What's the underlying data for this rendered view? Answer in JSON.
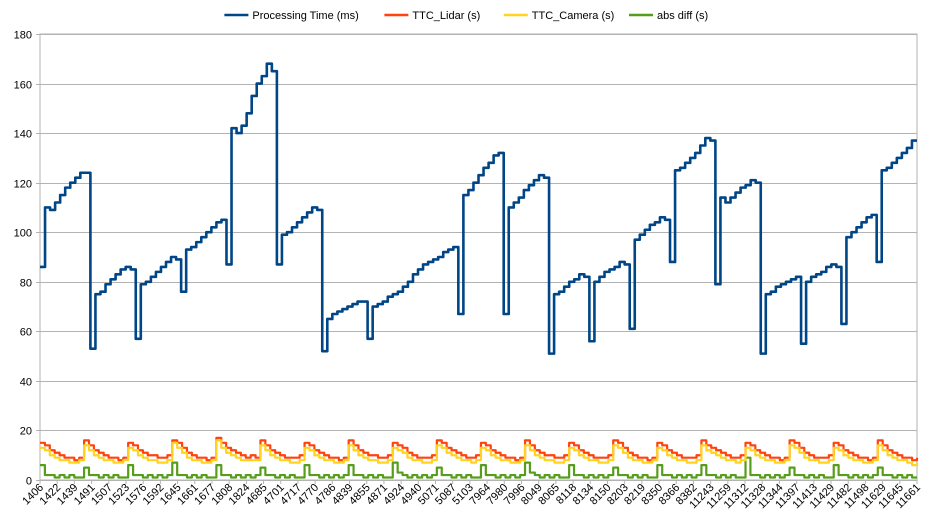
{
  "chart_data": {
    "type": "line",
    "title": "",
    "xlabel": "",
    "ylabel": "",
    "ylim": [
      0,
      180
    ],
    "yticks": [
      0,
      20,
      40,
      60,
      80,
      100,
      120,
      140,
      160,
      180
    ],
    "grid": true,
    "legend_position": "top-center",
    "x_tick_labels": [
      "1406",
      "1422",
      "1439",
      "1491",
      "1507",
      "1523",
      "1576",
      "1592",
      "1645",
      "1661",
      "1677",
      "1808",
      "1824",
      "4685",
      "4701",
      "4717",
      "4770",
      "4786",
      "4839",
      "4855",
      "4871",
      "4924",
      "4940",
      "5071",
      "5087",
      "5103",
      "7964",
      "7980",
      "7996",
      "8049",
      "8065",
      "8118",
      "8134",
      "8150",
      "8203",
      "8219",
      "8350",
      "8366",
      "8382",
      "11243",
      "11259",
      "11312",
      "11328",
      "11344",
      "11397",
      "11413",
      "11429",
      "11482",
      "11498",
      "11629",
      "11645",
      "11661"
    ],
    "series": [
      {
        "name": "Processing Time (ms)",
        "color": "#004586",
        "values": [
          86,
          110,
          109,
          112,
          115,
          118,
          120,
          122,
          124,
          124,
          53,
          75,
          76,
          79,
          81,
          83,
          85,
          86,
          85,
          57,
          79,
          80,
          82,
          84,
          86,
          88,
          90,
          89,
          76,
          93,
          94,
          96,
          98,
          100,
          102,
          104,
          105,
          87,
          142,
          140,
          143,
          148,
          155,
          160,
          163,
          168,
          165,
          87,
          99,
          100,
          102,
          104,
          106,
          108,
          110,
          109,
          52,
          65,
          67,
          68,
          69,
          70,
          71,
          72,
          72,
          57,
          70,
          71,
          72,
          74,
          75,
          76,
          78,
          80,
          83,
          85,
          87,
          88,
          89,
          90,
          92,
          93,
          94,
          67,
          115,
          117,
          120,
          123,
          126,
          128,
          131,
          132,
          67,
          110,
          112,
          114,
          117,
          119,
          121,
          123,
          122,
          51,
          75,
          76,
          78,
          80,
          81,
          83,
          82,
          56,
          80,
          82,
          84,
          85,
          86,
          88,
          87,
          61,
          97,
          99,
          101,
          103,
          104,
          106,
          105,
          88,
          125,
          126,
          128,
          130,
          132,
          135,
          138,
          137,
          79,
          114,
          112,
          114,
          116,
          118,
          119,
          121,
          120,
          51,
          75,
          76,
          78,
          79,
          80,
          81,
          82,
          55,
          80,
          82,
          83,
          84,
          86,
          87,
          86,
          63,
          98,
          100,
          102,
          104,
          106,
          107,
          88,
          125,
          126,
          128,
          130,
          132,
          134,
          137,
          137
        ]
      },
      {
        "name": "TTC_Lidar (s)",
        "color": "#ff420e",
        "values": [
          15,
          14,
          12,
          11,
          10,
          9,
          9,
          8,
          9,
          16,
          14,
          12,
          11,
          10,
          9,
          9,
          8,
          9,
          15,
          14,
          12,
          11,
          10,
          10,
          9,
          9,
          10,
          16,
          15,
          13,
          11,
          10,
          9,
          9,
          8,
          9,
          17,
          15,
          13,
          12,
          11,
          10,
          9,
          10,
          9,
          16,
          14,
          12,
          11,
          10,
          9,
          9,
          9,
          10,
          15,
          14,
          12,
          11,
          10,
          9,
          9,
          8,
          9,
          16,
          14,
          12,
          11,
          10,
          10,
          9,
          9,
          10,
          15,
          14,
          13,
          11,
          10,
          9,
          9,
          9,
          10,
          16,
          15,
          13,
          12,
          11,
          10,
          9,
          9,
          10,
          15,
          14,
          12,
          11,
          10,
          9,
          9,
          8,
          9,
          16,
          14,
          12,
          11,
          10,
          10,
          9,
          9,
          10,
          15,
          14,
          12,
          11,
          10,
          9,
          9,
          9,
          10,
          16,
          15,
          13,
          11,
          10,
          9,
          9,
          8,
          9,
          15,
          14,
          12,
          11,
          10,
          9,
          9,
          9,
          10,
          16,
          14,
          13,
          12,
          11,
          10,
          9,
          9,
          10,
          15,
          14,
          12,
          11,
          10,
          9,
          9,
          8,
          9,
          16,
          15,
          13,
          11,
          10,
          9,
          9,
          9,
          10,
          15,
          14,
          12,
          11,
          10,
          9,
          9,
          8,
          9,
          16,
          14,
          12,
          11,
          10,
          9,
          9,
          8,
          9
        ]
      },
      {
        "name": "TTC_Camera (s)",
        "color": "#ffd320",
        "values": [
          13,
          12,
          10,
          9,
          8,
          8,
          7,
          7,
          8,
          14,
          12,
          10,
          9,
          8,
          8,
          7,
          7,
          8,
          13,
          12,
          10,
          9,
          8,
          8,
          7,
          7,
          8,
          15,
          13,
          11,
          9,
          8,
          8,
          7,
          7,
          8,
          16,
          13,
          11,
          10,
          9,
          8,
          8,
          8,
          8,
          14,
          12,
          10,
          9,
          8,
          8,
          7,
          7,
          8,
          13,
          12,
          10,
          9,
          8,
          8,
          7,
          7,
          8,
          14,
          12,
          10,
          9,
          8,
          8,
          7,
          7,
          8,
          13,
          12,
          11,
          9,
          8,
          8,
          7,
          7,
          8,
          14,
          13,
          11,
          10,
          9,
          8,
          8,
          7,
          8,
          13,
          12,
          10,
          9,
          8,
          8,
          7,
          7,
          8,
          14,
          12,
          10,
          9,
          8,
          8,
          7,
          7,
          8,
          13,
          12,
          10,
          9,
          8,
          8,
          7,
          7,
          8,
          14,
          13,
          11,
          9,
          8,
          8,
          7,
          7,
          8,
          13,
          12,
          10,
          9,
          8,
          8,
          7,
          7,
          8,
          14,
          12,
          11,
          10,
          9,
          8,
          8,
          7,
          8,
          13,
          12,
          10,
          9,
          8,
          8,
          7,
          7,
          8,
          14,
          13,
          11,
          9,
          8,
          8,
          7,
          7,
          8,
          13,
          12,
          10,
          9,
          8,
          8,
          7,
          7,
          8,
          14,
          12,
          10,
          9,
          8,
          8,
          7,
          6,
          7
        ]
      },
      {
        "name": "abs diff (s)",
        "color": "#579d1c",
        "values": [
          6,
          2,
          2,
          1,
          2,
          1,
          2,
          1,
          1,
          5,
          2,
          2,
          1,
          2,
          1,
          2,
          1,
          1,
          6,
          2,
          2,
          1,
          2,
          1,
          2,
          1,
          2,
          7,
          2,
          2,
          1,
          2,
          1,
          2,
          1,
          1,
          6,
          2,
          2,
          1,
          2,
          1,
          2,
          1,
          2,
          5,
          2,
          2,
          1,
          2,
          1,
          2,
          1,
          1,
          6,
          2,
          2,
          1,
          2,
          1,
          2,
          1,
          2,
          6,
          2,
          2,
          1,
          2,
          1,
          2,
          1,
          1,
          7,
          3,
          2,
          1,
          2,
          1,
          2,
          1,
          2,
          5,
          2,
          2,
          1,
          2,
          1,
          2,
          1,
          1,
          6,
          2,
          2,
          1,
          2,
          1,
          2,
          1,
          2,
          7,
          3,
          2,
          1,
          2,
          1,
          2,
          1,
          1,
          6,
          2,
          2,
          1,
          2,
          1,
          2,
          1,
          2,
          5,
          2,
          2,
          1,
          2,
          1,
          2,
          1,
          1,
          6,
          2,
          2,
          1,
          2,
          1,
          2,
          1,
          2,
          6,
          2,
          2,
          1,
          2,
          1,
          2,
          1,
          1,
          9,
          2,
          2,
          1,
          2,
          1,
          2,
          1,
          2,
          5,
          2,
          2,
          1,
          2,
          1,
          2,
          1,
          1,
          6,
          2,
          2,
          1,
          2,
          1,
          2,
          1,
          2,
          5,
          2,
          2,
          1,
          2,
          1,
          2,
          1,
          1
        ]
      }
    ]
  }
}
